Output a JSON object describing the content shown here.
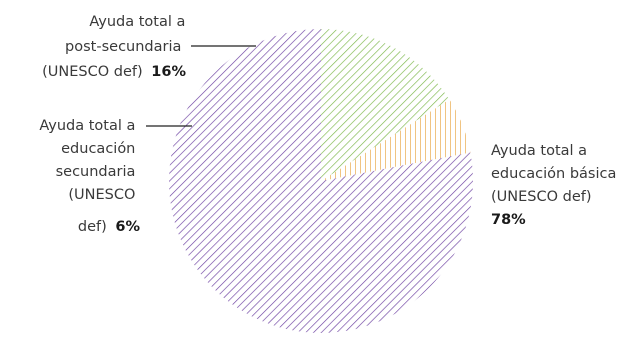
{
  "chart_data": {
    "type": "pie",
    "slices": [
      {
        "label_lines": [
          "Ayuda total a",
          "educación básica",
          "(UNESCO def)"
        ],
        "value": 78,
        "value_label": "78%",
        "color": "#6b3fa0"
      },
      {
        "label_lines": [
          "Ayuda total a",
          "educación",
          "secundaria",
          "(UNESCO",
          "def)"
        ],
        "value": 6,
        "value_label": "6%",
        "color": "#e8a33d"
      },
      {
        "label_lines": [
          "Ayuda total a",
          "post-secundaria",
          "(UNESCO def)"
        ],
        "value": 16,
        "value_label": "16%",
        "color": "#7ab648"
      }
    ],
    "start_angle_deg": 0,
    "direction": "counterclockwise",
    "legend": "none"
  }
}
